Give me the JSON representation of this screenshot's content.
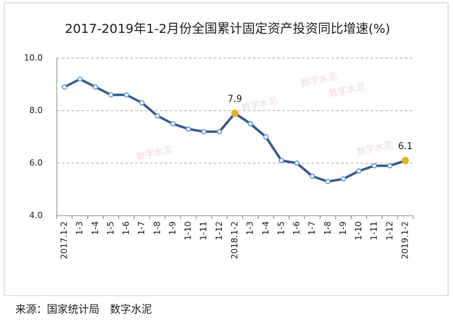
{
  "chart_data": {
    "type": "line",
    "title": "2017-2019年1-2月份全国累计固定资产投资同比增速(%)",
    "categories": [
      "2017.1-2",
      "1-3",
      "1-4",
      "1-5",
      "1-6",
      "1-7",
      "1-8",
      "1-9",
      "1-10",
      "1-11",
      "1-12",
      "2018.1-2",
      "1-3",
      "1-4",
      "1-5",
      "1-6",
      "1-7",
      "1-8",
      "1-9",
      "1-10",
      "1-11",
      "1-12",
      "2019.1-2"
    ],
    "series": [
      {
        "color": "#3b5b8f",
        "values": [
          8.9,
          9.2,
          8.9,
          8.6,
          8.6,
          8.3,
          7.8,
          7.5,
          7.3,
          7.2,
          7.2,
          7.9,
          7.5,
          7.0,
          6.1,
          6.0,
          5.5,
          5.3,
          5.4,
          5.7,
          5.9,
          5.9,
          6.1
        ]
      }
    ],
    "labeled_points": [
      11,
      22
    ],
    "highlight_color": "#e2b123",
    "ylim": [
      4,
      10
    ],
    "yticks": [
      {
        "value": 4,
        "label": "4.0"
      },
      {
        "value": 6,
        "label": "6.0"
      },
      {
        "value": 8,
        "label": "8.0"
      },
      {
        "value": 10,
        "label": "10.0"
      }
    ],
    "grid": true,
    "watermark": "数字水泥",
    "source": "来源：国家统计局　数字水泥"
  }
}
